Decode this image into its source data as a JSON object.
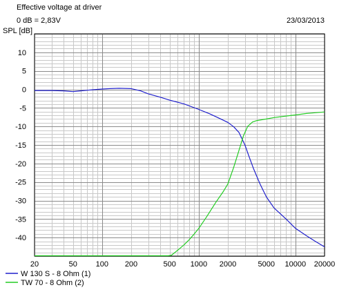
{
  "header": {
    "title": "Effective voltage at driver",
    "subtitle": "0 dB = 2,83V",
    "date": "23/03/2013"
  },
  "chart_data": {
    "type": "line",
    "ylabel": "SPL [dB]",
    "xlabel": "",
    "x_scale": "log",
    "xlim": [
      20,
      20000
    ],
    "ylim": [
      -45,
      15
    ],
    "grid": true,
    "legend_position": "bottom-left",
    "x_ticks": [
      20,
      50,
      100,
      200,
      500,
      1000,
      2000,
      5000,
      10000,
      20000
    ],
    "y_ticks": [
      10,
      5,
      0,
      -5,
      -10,
      -15,
      -20,
      -25,
      -30,
      -35,
      -40
    ],
    "series": [
      {
        "name": "W 130 S - 8 Ohm (1)",
        "color": "#1f1fcc",
        "x": [
          20,
          30,
          40,
          50,
          60,
          80,
          100,
          120,
          150,
          200,
          250,
          300,
          400,
          500,
          700,
          1000,
          1300,
          1600,
          2000,
          2300,
          2600,
          3000,
          3300,
          3700,
          4300,
          5000,
          6000,
          8000,
          10000,
          13000,
          16000,
          20000
        ],
        "y": [
          -0.3,
          -0.3,
          -0.4,
          -0.6,
          -0.4,
          -0.1,
          0.1,
          0.2,
          0.3,
          0.2,
          -0.4,
          -1.2,
          -2.1,
          -2.9,
          -3.9,
          -5.4,
          -6.6,
          -7.7,
          -8.9,
          -10.1,
          -11.6,
          -15.0,
          -18.0,
          -21.5,
          -25.5,
          -29.0,
          -32.0,
          -35.0,
          -37.5,
          -39.5,
          -41.0,
          -42.5
        ]
      },
      {
        "name": "TW 70 - 8 Ohm (2)",
        "color": "#22cc22",
        "x": [
          20,
          100,
          300,
          480,
          520,
          600,
          700,
          800,
          900,
          1000,
          1200,
          1500,
          1800,
          2000,
          2300,
          2600,
          2900,
          3200,
          3600,
          4000,
          5000,
          6000,
          8000,
          10000,
          13000,
          16000,
          20000
        ],
        "y": [
          -45.0,
          -45.0,
          -45.0,
          -45.0,
          -44.8,
          -43.5,
          -42.0,
          -40.5,
          -39.0,
          -37.5,
          -34.5,
          -30.5,
          -27.5,
          -25.5,
          -21.0,
          -16.5,
          -12.5,
          -10.0,
          -8.8,
          -8.4,
          -8.0,
          -7.6,
          -7.2,
          -6.9,
          -6.5,
          -6.3,
          -6.1
        ]
      }
    ]
  }
}
